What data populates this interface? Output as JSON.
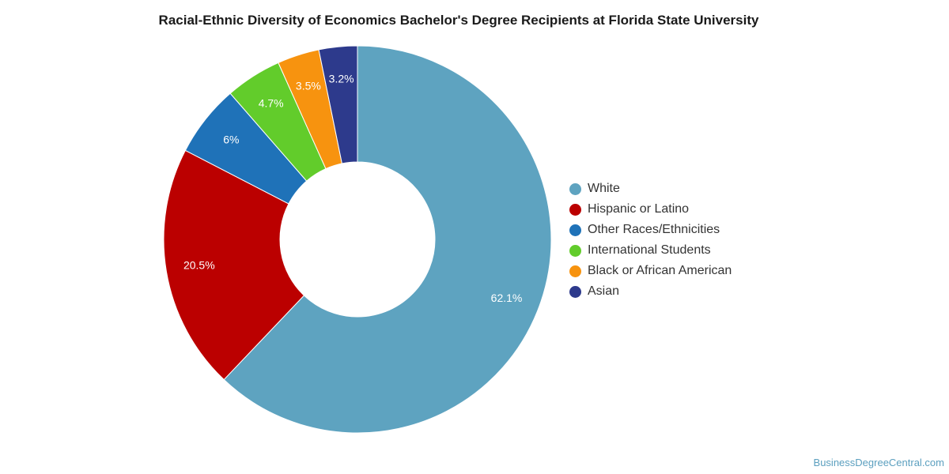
{
  "chart_data": {
    "type": "pie",
    "title": "Racial-Ethnic Diversity of Economics Bachelor's Degree Recipients at Florida State University",
    "donut": true,
    "legend_position": "right",
    "slices": [
      {
        "name": "White",
        "value": 62.1,
        "label": "62.1%",
        "color": "#5ea3c0"
      },
      {
        "name": "Hispanic or Latino",
        "value": 20.5,
        "label": "20.5%",
        "color": "#bb0000"
      },
      {
        "name": "Other Races/Ethnicities",
        "value": 6,
        "label": "6%",
        "color": "#1f72b8"
      },
      {
        "name": "International Students",
        "value": 4.7,
        "label": "4.7%",
        "color": "#62cc2b"
      },
      {
        "name": "Black or African American",
        "value": 3.5,
        "label": "3.5%",
        "color": "#f7930f"
      },
      {
        "name": "Asian",
        "value": 3.2,
        "label": "3.2%",
        "color": "#2d3a8c"
      }
    ]
  },
  "watermark": "BusinessDegreeCentral.com"
}
